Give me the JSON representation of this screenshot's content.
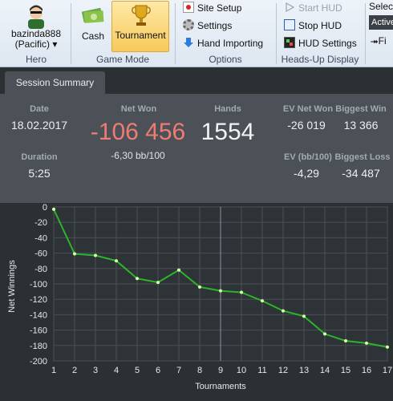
{
  "ribbon": {
    "hero": {
      "name_line1": "bazinda888",
      "name_line2": "(Pacific)",
      "group_label": "Hero"
    },
    "game_mode": {
      "cash_label": "Cash",
      "tournament_label": "Tournament",
      "group_label": "Game Mode"
    },
    "options": {
      "site_setup": "Site Setup",
      "settings": "Settings",
      "hand_importing": "Hand Importing",
      "group_label": "Options"
    },
    "hud": {
      "start_hud": "Start HUD",
      "stop_hud": "Stop HUD",
      "hud_settings": "HUD Settings",
      "group_label": "Heads-Up Display"
    },
    "select": {
      "label": "Select",
      "active_value": "Active",
      "filter_label": "Fi"
    }
  },
  "tabs": [
    {
      "label": "Session Summary"
    }
  ],
  "summary": {
    "date_label": "Date",
    "date_value": "18.02.2017",
    "duration_label": "Duration",
    "duration_value": "5:25",
    "net_won_label": "Net Won",
    "net_won_value": "-106 456",
    "net_won_bb": "-6,30 bb/100",
    "hands_label": "Hands",
    "hands_value": "1554",
    "ev_net_won_label": "EV Net Won",
    "ev_net_won_value": "-26 019",
    "ev_bb_label": "EV (bb/100)",
    "ev_bb_value": "-4,29",
    "biggest_win_label": "Biggest Win",
    "biggest_win_value": "13 366",
    "biggest_loss_label": "Biggest Loss",
    "biggest_loss_value": "-34 487",
    "colors": {
      "negative": "#f07b73",
      "label": "#a3aab1"
    }
  },
  "chart_data": {
    "type": "line",
    "xlabel": "Tournaments",
    "ylabel": "Net Winnings",
    "x": [
      1,
      2,
      3,
      4,
      5,
      6,
      7,
      8,
      9,
      10,
      11,
      12,
      13,
      14,
      15,
      16,
      17
    ],
    "series": [
      {
        "values": [
          -3,
          -61,
          -63,
          -70,
          -93,
          -98,
          -82,
          -104,
          -109,
          -111,
          -122,
          -135,
          -142,
          -165,
          -174,
          -177,
          -182
        ]
      }
    ],
    "xlim": [
      1,
      17
    ],
    "ylim": [
      -200,
      0
    ],
    "yticks": [
      0,
      -20,
      -40,
      -60,
      -80,
      -100,
      -120,
      -140,
      -160,
      -180,
      -200
    ],
    "grid": true,
    "line_color": "#2bb52b",
    "marker_color": "#d9ffa6"
  }
}
